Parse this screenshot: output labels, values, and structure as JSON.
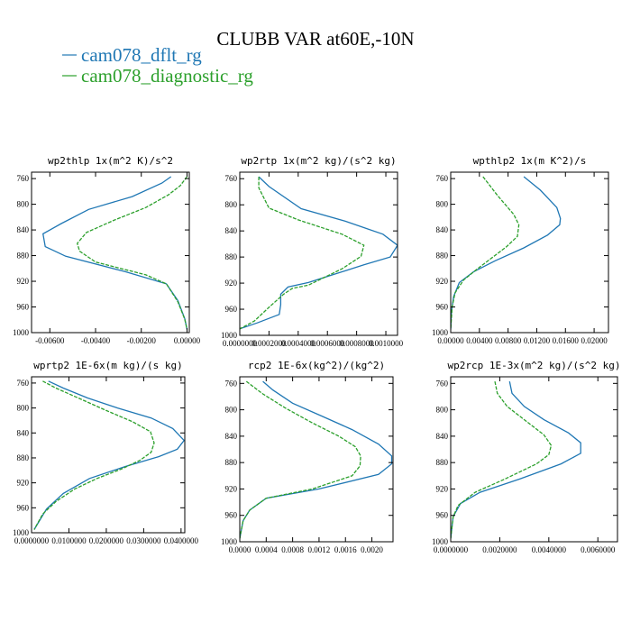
{
  "title": "CLUBB VAR at60E,-10N",
  "legend": [
    {
      "name": "cam078_dflt_rg",
      "color": "#1f77b4"
    },
    {
      "name": "cam078_diagnostic_rg",
      "color": "#2ca02c"
    }
  ],
  "chart_data": [
    {
      "type": "line",
      "title": "wp2thlp  1x(m^2 K)/s^2",
      "xlim": [
        -0.0068,
        0.0001
      ],
      "ylim": [
        1000,
        750
      ],
      "xticks": [
        -0.006,
        -0.004,
        -0.002,
        0.0
      ],
      "xtick_labels": [
        "-0.00600",
        "-0.00400",
        "-0.00200",
        "0.00000"
      ],
      "yticks": [
        760,
        800,
        840,
        880,
        920,
        960,
        1000
      ],
      "ytick_labels": [
        "760",
        "800",
        "840",
        "880",
        "920",
        "960",
        "1000"
      ],
      "series": [
        {
          "name": "cam078_dflt_rg",
          "style": "solid",
          "color": "#1f77b4",
          "x": [
            -0.0007,
            -0.0011,
            -0.0024,
            -0.0043,
            -0.0055,
            -0.0063,
            -0.0062,
            -0.0053,
            -0.0027,
            -0.0009,
            -0.0004,
            -0.0001,
            0.0
          ],
          "y": [
            757,
            767,
            788,
            808,
            830,
            846,
            866,
            881,
            905,
            924,
            950,
            978,
            995
          ]
        },
        {
          "name": "cam078_diagnostic_rg",
          "style": "dashed",
          "color": "#2ca02c",
          "x": [
            0.0,
            -0.0003,
            -0.0008,
            -0.0018,
            -0.0032,
            -0.0044,
            -0.0048,
            -0.0047,
            -0.004,
            -0.0018,
            -0.0009,
            -0.0004,
            -0.0001,
            0.0
          ],
          "y": [
            757,
            771,
            785,
            805,
            825,
            844,
            861,
            873,
            890,
            910,
            924,
            952,
            979,
            995
          ]
        }
      ]
    },
    {
      "type": "line",
      "title": "wp2rtp  1x(m^2 kg)/(s^2 kg)",
      "xlim": [
        0.0,
        0.00108
      ],
      "ylim": [
        1000,
        750
      ],
      "xticks": [
        0.0,
        0.0002,
        0.0004,
        0.0006,
        0.0008,
        0.001
      ],
      "xtick_labels": [
        "0.0000000",
        "0.0002000",
        "0.0004000",
        "0.0006000",
        "0.0008000",
        "0.0010000"
      ],
      "yticks": [
        760,
        800,
        840,
        880,
        920,
        960,
        1000
      ],
      "ytick_labels": [
        "760",
        "800",
        "840",
        "880",
        "920",
        "960",
        "1000"
      ],
      "series": [
        {
          "name": "cam078_dflt_rg",
          "style": "solid",
          "color": "#1f77b4",
          "x": [
            0.00013,
            0.0002,
            0.00042,
            0.00072,
            0.00098,
            0.00108,
            0.00103,
            0.00085,
            0.00047,
            0.00033,
            0.00028,
            0.00028,
            0.00027,
            0.00012,
            0.0
          ],
          "y": [
            757,
            772,
            806,
            825,
            845,
            862,
            880,
            892,
            919,
            926,
            937,
            953,
            968,
            981,
            990
          ]
        },
        {
          "name": "cam078_diagnostic_rg",
          "style": "dashed",
          "color": "#2ca02c",
          "x": [
            0.00013,
            0.00013,
            0.0002,
            0.0004,
            0.0007,
            0.00085,
            0.00083,
            0.0007,
            0.00047,
            0.00036,
            0.0003,
            0.0002,
            0.0001,
            0.0
          ],
          "y": [
            757,
            774,
            805,
            823,
            845,
            862,
            879,
            898,
            923,
            928,
            937,
            957,
            978,
            990
          ]
        }
      ]
    },
    {
      "type": "line",
      "title": "wpthlp2  1x(m K^2)/s",
      "xlim": [
        0.0,
        0.022
      ],
      "ylim": [
        1000,
        750
      ],
      "xticks": [
        0.0,
        0.004,
        0.008,
        0.012,
        0.016,
        0.02
      ],
      "xtick_labels": [
        "0.00000",
        "0.00400",
        "0.00800",
        "0.01200",
        "0.01600",
        "0.02000"
      ],
      "yticks": [
        760,
        800,
        840,
        880,
        920,
        960,
        1000
      ],
      "ytick_labels": [
        "760",
        "800",
        "840",
        "880",
        "920",
        "960",
        "1000"
      ],
      "series": [
        {
          "name": "cam078_dflt_rg",
          "style": "solid",
          "color": "#1f77b4",
          "x": [
            0.0102,
            0.0125,
            0.0148,
            0.0153,
            0.0152,
            0.0135,
            0.0102,
            0.0062,
            0.0032,
            0.0012,
            0.0004,
            0.0001,
            0.0
          ],
          "y": [
            757,
            778,
            805,
            822,
            832,
            848,
            868,
            888,
            905,
            922,
            944,
            968,
            995
          ]
        },
        {
          "name": "cam078_diagnostic_rg",
          "style": "dashed",
          "color": "#2ca02c",
          "x": [
            0.0045,
            0.0065,
            0.0088,
            0.0095,
            0.0093,
            0.0078,
            0.0058,
            0.0038,
            0.0018,
            0.0006,
            0.0002,
            0.0
          ],
          "y": [
            757,
            786,
            816,
            832,
            850,
            866,
            883,
            900,
            918,
            938,
            960,
            995
          ]
        }
      ]
    },
    {
      "type": "line",
      "title": "wprtp2  1E-6x(m kg)/(s kg)",
      "xlim": [
        0.0,
        0.041
      ],
      "ylim": [
        1000,
        750
      ],
      "xticks": [
        0.0,
        0.01,
        0.02,
        0.03,
        0.04
      ],
      "xtick_labels": [
        "0.0000000",
        "0.0100000",
        "0.0200000",
        "0.0300000",
        "0.0400000"
      ],
      "yticks": [
        760,
        800,
        840,
        880,
        920,
        960,
        1000
      ],
      "ytick_labels": [
        "760",
        "800",
        "840",
        "880",
        "920",
        "960",
        "1000"
      ],
      "series": [
        {
          "name": "cam078_dflt_rg",
          "style": "solid",
          "color": "#1f77b4",
          "x": [
            0.0045,
            0.0085,
            0.015,
            0.023,
            0.032,
            0.0378,
            0.0408,
            0.039,
            0.034,
            0.025,
            0.0155,
            0.0085,
            0.004,
            0.0007
          ],
          "y": [
            757,
            768,
            784,
            800,
            816,
            833,
            852,
            866,
            878,
            894,
            913,
            937,
            962,
            995
          ]
        },
        {
          "name": "cam078_diagnostic_rg",
          "style": "dashed",
          "color": "#2ca02c",
          "x": [
            0.003,
            0.0065,
            0.0125,
            0.02,
            0.027,
            0.0318,
            0.0328,
            0.032,
            0.029,
            0.024,
            0.0175,
            0.0115,
            0.0065,
            0.003,
            0.0007
          ],
          "y": [
            757,
            768,
            784,
            804,
            822,
            838,
            856,
            871,
            884,
            898,
            913,
            930,
            950,
            970,
            995
          ]
        }
      ]
    },
    {
      "type": "line",
      "title": "rcp2  1E-6x(kg^2)/(kg^2)",
      "xlim": [
        0.0,
        0.00232
      ],
      "ylim": [
        1000,
        750
      ],
      "xticks": [
        0.0,
        0.0004,
        0.0008,
        0.0012,
        0.0016,
        0.002
      ],
      "xtick_labels": [
        "0.0000",
        "0.0004",
        "0.0008",
        "0.0012",
        "0.0016",
        "0.0020"
      ],
      "yticks": [
        760,
        800,
        840,
        880,
        920,
        960,
        1000
      ],
      "ytick_labels": [
        "760",
        "800",
        "840",
        "880",
        "920",
        "960",
        "1000"
      ],
      "series": [
        {
          "name": "cam078_dflt_rg",
          "style": "solid",
          "color": "#1f77b4",
          "x": [
            0.00035,
            0.0005,
            0.0008,
            0.00125,
            0.0017,
            0.0021,
            0.0023,
            0.0023,
            0.0021,
            0.0012,
            0.0004,
            0.00015,
            5e-05,
            0.0
          ],
          "y": [
            757,
            770,
            790,
            810,
            830,
            852,
            870,
            882,
            898,
            920,
            934,
            952,
            968,
            995
          ]
        },
        {
          "name": "cam078_diagnostic_rg",
          "style": "dashed",
          "color": "#2ca02c",
          "x": [
            0.0001,
            0.00035,
            0.0007,
            0.0011,
            0.0015,
            0.00175,
            0.00183,
            0.00182,
            0.0017,
            0.0011,
            0.0004,
            0.00015,
            5e-05,
            0.0
          ],
          "y": [
            757,
            776,
            798,
            820,
            840,
            856,
            870,
            885,
            900,
            920,
            934,
            952,
            968,
            995
          ]
        }
      ]
    },
    {
      "type": "line",
      "title": "wp2rcp  1E-3x(m^2 kg)/(s^2 kg)",
      "xlim": [
        0.0,
        0.0068
      ],
      "ylim": [
        1000,
        750
      ],
      "xticks": [
        0.0,
        0.002,
        0.004,
        0.006
      ],
      "xtick_labels": [
        "0.0000000",
        "0.0020000",
        "0.0040000",
        "0.0060000"
      ],
      "yticks": [
        760,
        800,
        840,
        880,
        920,
        960,
        1000
      ],
      "ytick_labels": [
        "760",
        "800",
        "840",
        "880",
        "920",
        "960",
        "1000"
      ],
      "series": [
        {
          "name": "cam078_dflt_rg",
          "style": "solid",
          "color": "#1f77b4",
          "x": [
            0.0024,
            0.0025,
            0.003,
            0.0038,
            0.0048,
            0.0053,
            0.0053,
            0.0045,
            0.0028,
            0.0012,
            0.0004,
            0.0001,
            0.0
          ],
          "y": [
            757,
            775,
            795,
            815,
            835,
            850,
            866,
            882,
            905,
            925,
            942,
            962,
            995
          ]
        },
        {
          "name": "cam078_diagnostic_rg",
          "style": "dashed",
          "color": "#2ca02c",
          "x": [
            0.0018,
            0.0019,
            0.0023,
            0.003,
            0.0038,
            0.0041,
            0.004,
            0.0035,
            0.0022,
            0.001,
            0.0003,
            0.0001,
            0.0
          ],
          "y": [
            757,
            775,
            795,
            815,
            838,
            854,
            868,
            882,
            905,
            925,
            945,
            962,
            995
          ]
        }
      ]
    }
  ]
}
